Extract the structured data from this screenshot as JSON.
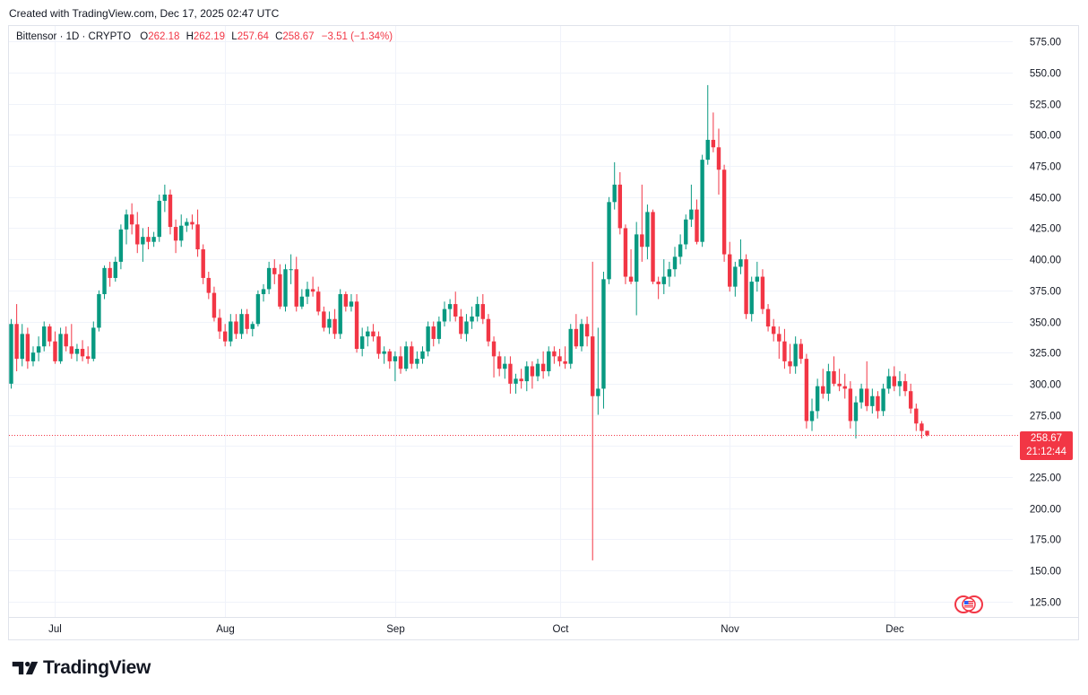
{
  "header": {
    "created_text": "Created with TradingView.com, Dec 17, 2025 02:47 UTC"
  },
  "legend": {
    "symbol": "Bittensor · 1D · CRYPTO",
    "o_label": "O",
    "o_value": "262.18",
    "h_label": "H",
    "h_value": "262.19",
    "l_label": "L",
    "l_value": "257.64",
    "c_label": "C",
    "c_value": "258.67",
    "change": "−3.51 (−1.34%)"
  },
  "price_tag": {
    "price": "258.67",
    "countdown": "21:12:44"
  },
  "brand": {
    "name": "TradingView",
    "logo_icon": "tradingview-logo-icon"
  },
  "colors": {
    "up": "#089981",
    "down": "#f23645",
    "grid": "#f0f3fa",
    "axis_text": "#131722"
  },
  "chart_data": {
    "type": "candlestick",
    "title": "Bittensor · 1D · CRYPTO",
    "ylim": [
      112.5,
      587.5
    ],
    "y_ticks": [
      575,
      550,
      525,
      500,
      475,
      450,
      425,
      400,
      375,
      350,
      325,
      300,
      275,
      250,
      225,
      200,
      175,
      150,
      125
    ],
    "y_tick_labels": [
      "575.00",
      "550.00",
      "525.00",
      "500.00",
      "475.00",
      "450.00",
      "425.00",
      "400.00",
      "375.00",
      "350.00",
      "325.00",
      "300.00",
      "275.00",
      "250.00",
      "225.00",
      "200.00",
      "175.00",
      "150.00",
      "125.00"
    ],
    "x_labels": [
      {
        "label": "Jul",
        "index": 8
      },
      {
        "label": "Aug",
        "index": 39
      },
      {
        "label": "Sep",
        "index": 70
      },
      {
        "label": "Oct",
        "index": 100
      },
      {
        "label": "Nov",
        "index": 131
      },
      {
        "label": "Dec",
        "index": 161
      }
    ],
    "last_price": 258.67,
    "grid": true,
    "candles": [
      {
        "o": 300,
        "h": 352,
        "l": 296,
        "c": 348
      },
      {
        "o": 348,
        "h": 364,
        "l": 310,
        "c": 320
      },
      {
        "o": 320,
        "h": 348,
        "l": 314,
        "c": 340
      },
      {
        "o": 340,
        "h": 345,
        "l": 312,
        "c": 318
      },
      {
        "o": 318,
        "h": 330,
        "l": 314,
        "c": 325
      },
      {
        "o": 325,
        "h": 338,
        "l": 318,
        "c": 330
      },
      {
        "o": 330,
        "h": 350,
        "l": 326,
        "c": 346
      },
      {
        "o": 346,
        "h": 348,
        "l": 330,
        "c": 334
      },
      {
        "o": 334,
        "h": 342,
        "l": 316,
        "c": 318
      },
      {
        "o": 318,
        "h": 345,
        "l": 316,
        "c": 340
      },
      {
        "o": 340,
        "h": 346,
        "l": 326,
        "c": 330
      },
      {
        "o": 330,
        "h": 348,
        "l": 320,
        "c": 324
      },
      {
        "o": 324,
        "h": 332,
        "l": 318,
        "c": 328
      },
      {
        "o": 328,
        "h": 335,
        "l": 318,
        "c": 322
      },
      {
        "o": 322,
        "h": 330,
        "l": 316,
        "c": 320
      },
      {
        "o": 320,
        "h": 350,
        "l": 318,
        "c": 345
      },
      {
        "o": 345,
        "h": 375,
        "l": 342,
        "c": 372
      },
      {
        "o": 372,
        "h": 395,
        "l": 368,
        "c": 393
      },
      {
        "o": 393,
        "h": 398,
        "l": 378,
        "c": 385
      },
      {
        "o": 385,
        "h": 402,
        "l": 382,
        "c": 398
      },
      {
        "o": 398,
        "h": 428,
        "l": 392,
        "c": 424
      },
      {
        "o": 424,
        "h": 440,
        "l": 412,
        "c": 436
      },
      {
        "o": 436,
        "h": 445,
        "l": 420,
        "c": 428
      },
      {
        "o": 428,
        "h": 438,
        "l": 405,
        "c": 412
      },
      {
        "o": 412,
        "h": 425,
        "l": 398,
        "c": 418
      },
      {
        "o": 418,
        "h": 426,
        "l": 408,
        "c": 414
      },
      {
        "o": 414,
        "h": 422,
        "l": 410,
        "c": 418
      },
      {
        "o": 418,
        "h": 452,
        "l": 414,
        "c": 447
      },
      {
        "o": 447,
        "h": 460,
        "l": 438,
        "c": 452
      },
      {
        "o": 452,
        "h": 456,
        "l": 420,
        "c": 426
      },
      {
        "o": 426,
        "h": 432,
        "l": 405,
        "c": 415
      },
      {
        "o": 415,
        "h": 436,
        "l": 410,
        "c": 427
      },
      {
        "o": 427,
        "h": 433,
        "l": 422,
        "c": 430
      },
      {
        "o": 430,
        "h": 436,
        "l": 424,
        "c": 428
      },
      {
        "o": 428,
        "h": 440,
        "l": 402,
        "c": 408
      },
      {
        "o": 408,
        "h": 412,
        "l": 380,
        "c": 385
      },
      {
        "o": 385,
        "h": 390,
        "l": 368,
        "c": 373
      },
      {
        "o": 373,
        "h": 378,
        "l": 350,
        "c": 353
      },
      {
        "o": 353,
        "h": 360,
        "l": 336,
        "c": 342
      },
      {
        "o": 342,
        "h": 348,
        "l": 330,
        "c": 334
      },
      {
        "o": 334,
        "h": 356,
        "l": 330,
        "c": 350
      },
      {
        "o": 350,
        "h": 356,
        "l": 336,
        "c": 340
      },
      {
        "o": 340,
        "h": 360,
        "l": 336,
        "c": 356
      },
      {
        "o": 356,
        "h": 360,
        "l": 340,
        "c": 344
      },
      {
        "o": 344,
        "h": 350,
        "l": 338,
        "c": 348
      },
      {
        "o": 348,
        "h": 375,
        "l": 346,
        "c": 372
      },
      {
        "o": 372,
        "h": 380,
        "l": 366,
        "c": 376
      },
      {
        "o": 376,
        "h": 398,
        "l": 372,
        "c": 393
      },
      {
        "o": 393,
        "h": 400,
        "l": 380,
        "c": 388
      },
      {
        "o": 388,
        "h": 396,
        "l": 360,
        "c": 362
      },
      {
        "o": 362,
        "h": 396,
        "l": 358,
        "c": 392
      },
      {
        "o": 392,
        "h": 404,
        "l": 380,
        "c": 392
      },
      {
        "o": 392,
        "h": 402,
        "l": 358,
        "c": 362
      },
      {
        "o": 362,
        "h": 376,
        "l": 360,
        "c": 370
      },
      {
        "o": 370,
        "h": 382,
        "l": 364,
        "c": 376
      },
      {
        "o": 376,
        "h": 386,
        "l": 370,
        "c": 374
      },
      {
        "o": 374,
        "h": 378,
        "l": 355,
        "c": 358
      },
      {
        "o": 358,
        "h": 362,
        "l": 342,
        "c": 345
      },
      {
        "o": 345,
        "h": 358,
        "l": 340,
        "c": 352
      },
      {
        "o": 352,
        "h": 360,
        "l": 336,
        "c": 340
      },
      {
        "o": 340,
        "h": 376,
        "l": 336,
        "c": 372
      },
      {
        "o": 372,
        "h": 374,
        "l": 358,
        "c": 362
      },
      {
        "o": 362,
        "h": 372,
        "l": 358,
        "c": 366
      },
      {
        "o": 366,
        "h": 372,
        "l": 325,
        "c": 328
      },
      {
        "o": 328,
        "h": 345,
        "l": 322,
        "c": 338
      },
      {
        "o": 338,
        "h": 346,
        "l": 330,
        "c": 342
      },
      {
        "o": 342,
        "h": 348,
        "l": 334,
        "c": 338
      },
      {
        "o": 338,
        "h": 342,
        "l": 320,
        "c": 324
      },
      {
        "o": 324,
        "h": 330,
        "l": 316,
        "c": 326
      },
      {
        "o": 326,
        "h": 328,
        "l": 312,
        "c": 318
      },
      {
        "o": 318,
        "h": 326,
        "l": 302,
        "c": 322
      },
      {
        "o": 322,
        "h": 330,
        "l": 308,
        "c": 312
      },
      {
        "o": 312,
        "h": 334,
        "l": 310,
        "c": 330
      },
      {
        "o": 330,
        "h": 334,
        "l": 312,
        "c": 316
      },
      {
        "o": 316,
        "h": 326,
        "l": 312,
        "c": 320
      },
      {
        "o": 320,
        "h": 330,
        "l": 316,
        "c": 326
      },
      {
        "o": 326,
        "h": 350,
        "l": 322,
        "c": 346
      },
      {
        "o": 346,
        "h": 350,
        "l": 330,
        "c": 336
      },
      {
        "o": 336,
        "h": 354,
        "l": 332,
        "c": 350
      },
      {
        "o": 350,
        "h": 366,
        "l": 346,
        "c": 360
      },
      {
        "o": 360,
        "h": 368,
        "l": 350,
        "c": 364
      },
      {
        "o": 364,
        "h": 374,
        "l": 350,
        "c": 354
      },
      {
        "o": 354,
        "h": 360,
        "l": 336,
        "c": 340
      },
      {
        "o": 340,
        "h": 356,
        "l": 334,
        "c": 350
      },
      {
        "o": 350,
        "h": 362,
        "l": 344,
        "c": 354
      },
      {
        "o": 354,
        "h": 370,
        "l": 350,
        "c": 364
      },
      {
        "o": 364,
        "h": 372,
        "l": 348,
        "c": 352
      },
      {
        "o": 352,
        "h": 356,
        "l": 330,
        "c": 334
      },
      {
        "o": 334,
        "h": 338,
        "l": 305,
        "c": 322
      },
      {
        "o": 322,
        "h": 326,
        "l": 306,
        "c": 312
      },
      {
        "o": 312,
        "h": 322,
        "l": 304,
        "c": 316
      },
      {
        "o": 316,
        "h": 322,
        "l": 292,
        "c": 300
      },
      {
        "o": 300,
        "h": 308,
        "l": 292,
        "c": 304
      },
      {
        "o": 304,
        "h": 312,
        "l": 296,
        "c": 302
      },
      {
        "o": 302,
        "h": 318,
        "l": 294,
        "c": 314
      },
      {
        "o": 314,
        "h": 318,
        "l": 296,
        "c": 306
      },
      {
        "o": 306,
        "h": 320,
        "l": 302,
        "c": 316
      },
      {
        "o": 316,
        "h": 326,
        "l": 304,
        "c": 310
      },
      {
        "o": 310,
        "h": 330,
        "l": 306,
        "c": 326
      },
      {
        "o": 326,
        "h": 330,
        "l": 316,
        "c": 322
      },
      {
        "o": 322,
        "h": 328,
        "l": 314,
        "c": 318
      },
      {
        "o": 318,
        "h": 330,
        "l": 312,
        "c": 316
      },
      {
        "o": 316,
        "h": 348,
        "l": 312,
        "c": 344
      },
      {
        "o": 344,
        "h": 356,
        "l": 328,
        "c": 330
      },
      {
        "o": 330,
        "h": 352,
        "l": 326,
        "c": 348
      },
      {
        "o": 348,
        "h": 354,
        "l": 330,
        "c": 338
      },
      {
        "o": 338,
        "h": 398,
        "l": 158,
        "c": 290
      },
      {
        "o": 290,
        "h": 345,
        "l": 275,
        "c": 296
      },
      {
        "o": 296,
        "h": 390,
        "l": 280,
        "c": 384
      },
      {
        "o": 384,
        "h": 450,
        "l": 380,
        "c": 446
      },
      {
        "o": 446,
        "h": 478,
        "l": 440,
        "c": 460
      },
      {
        "o": 460,
        "h": 470,
        "l": 420,
        "c": 425
      },
      {
        "o": 425,
        "h": 428,
        "l": 380,
        "c": 386
      },
      {
        "o": 386,
        "h": 408,
        "l": 380,
        "c": 382
      },
      {
        "o": 382,
        "h": 430,
        "l": 355,
        "c": 420
      },
      {
        "o": 420,
        "h": 460,
        "l": 398,
        "c": 410
      },
      {
        "o": 410,
        "h": 444,
        "l": 400,
        "c": 438
      },
      {
        "o": 438,
        "h": 440,
        "l": 380,
        "c": 382
      },
      {
        "o": 382,
        "h": 386,
        "l": 368,
        "c": 380
      },
      {
        "o": 380,
        "h": 400,
        "l": 372,
        "c": 386
      },
      {
        "o": 386,
        "h": 398,
        "l": 378,
        "c": 392
      },
      {
        "o": 392,
        "h": 410,
        "l": 386,
        "c": 402
      },
      {
        "o": 402,
        "h": 420,
        "l": 396,
        "c": 412
      },
      {
        "o": 412,
        "h": 436,
        "l": 408,
        "c": 432
      },
      {
        "o": 432,
        "h": 460,
        "l": 426,
        "c": 440
      },
      {
        "o": 440,
        "h": 448,
        "l": 412,
        "c": 414
      },
      {
        "o": 414,
        "h": 484,
        "l": 410,
        "c": 480
      },
      {
        "o": 480,
        "h": 540,
        "l": 476,
        "c": 496
      },
      {
        "o": 496,
        "h": 518,
        "l": 486,
        "c": 490
      },
      {
        "o": 490,
        "h": 505,
        "l": 452,
        "c": 472
      },
      {
        "o": 472,
        "h": 476,
        "l": 398,
        "c": 404
      },
      {
        "o": 404,
        "h": 414,
        "l": 374,
        "c": 378
      },
      {
        "o": 378,
        "h": 398,
        "l": 370,
        "c": 394
      },
      {
        "o": 394,
        "h": 416,
        "l": 388,
        "c": 400
      },
      {
        "o": 400,
        "h": 404,
        "l": 352,
        "c": 356
      },
      {
        "o": 356,
        "h": 386,
        "l": 350,
        "c": 382
      },
      {
        "o": 382,
        "h": 398,
        "l": 374,
        "c": 386
      },
      {
        "o": 386,
        "h": 392,
        "l": 356,
        "c": 360
      },
      {
        "o": 360,
        "h": 364,
        "l": 342,
        "c": 346
      },
      {
        "o": 346,
        "h": 352,
        "l": 334,
        "c": 340
      },
      {
        "o": 340,
        "h": 346,
        "l": 320,
        "c": 334
      },
      {
        "o": 334,
        "h": 344,
        "l": 312,
        "c": 318
      },
      {
        "o": 318,
        "h": 332,
        "l": 308,
        "c": 314
      },
      {
        "o": 314,
        "h": 338,
        "l": 308,
        "c": 332
      },
      {
        "o": 332,
        "h": 336,
        "l": 316,
        "c": 320
      },
      {
        "o": 320,
        "h": 324,
        "l": 264,
        "c": 270
      },
      {
        "o": 270,
        "h": 288,
        "l": 262,
        "c": 278
      },
      {
        "o": 278,
        "h": 304,
        "l": 272,
        "c": 298
      },
      {
        "o": 298,
        "h": 312,
        "l": 288,
        "c": 292
      },
      {
        "o": 292,
        "h": 316,
        "l": 286,
        "c": 310
      },
      {
        "o": 310,
        "h": 322,
        "l": 298,
        "c": 300
      },
      {
        "o": 300,
        "h": 312,
        "l": 294,
        "c": 298
      },
      {
        "o": 298,
        "h": 308,
        "l": 288,
        "c": 296
      },
      {
        "o": 296,
        "h": 302,
        "l": 264,
        "c": 270
      },
      {
        "o": 270,
        "h": 290,
        "l": 256,
        "c": 285
      },
      {
        "o": 285,
        "h": 300,
        "l": 280,
        "c": 296
      },
      {
        "o": 296,
        "h": 318,
        "l": 278,
        "c": 282
      },
      {
        "o": 282,
        "h": 296,
        "l": 276,
        "c": 290
      },
      {
        "o": 290,
        "h": 294,
        "l": 272,
        "c": 278
      },
      {
        "o": 278,
        "h": 300,
        "l": 274,
        "c": 296
      },
      {
        "o": 296,
        "h": 312,
        "l": 292,
        "c": 306
      },
      {
        "o": 306,
        "h": 314,
        "l": 294,
        "c": 298
      },
      {
        "o": 298,
        "h": 310,
        "l": 290,
        "c": 302
      },
      {
        "o": 302,
        "h": 308,
        "l": 290,
        "c": 294
      },
      {
        "o": 294,
        "h": 300,
        "l": 276,
        "c": 280
      },
      {
        "o": 280,
        "h": 284,
        "l": 262,
        "c": 268
      },
      {
        "o": 268,
        "h": 270,
        "l": 256,
        "c": 262
      },
      {
        "o": 262.18,
        "h": 262.19,
        "l": 257.64,
        "c": 258.67
      }
    ]
  }
}
